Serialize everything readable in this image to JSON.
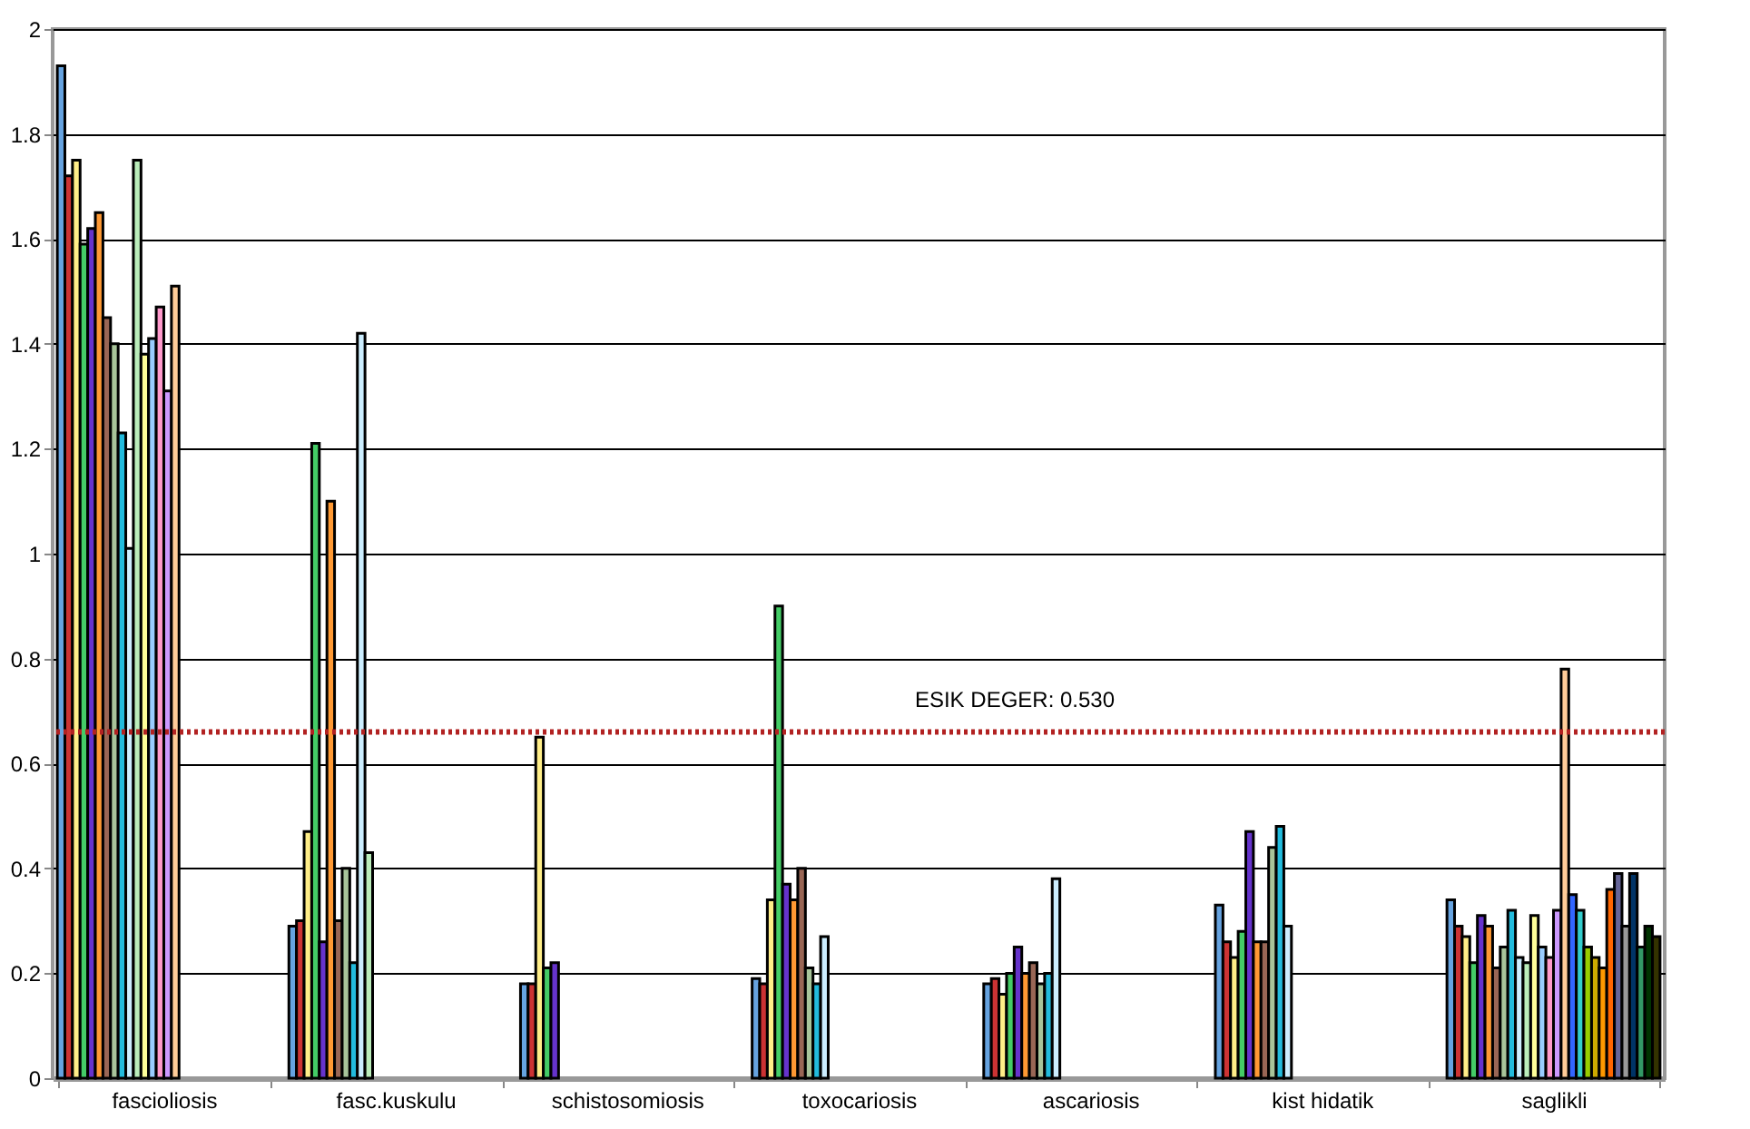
{
  "chart_data": {
    "type": "bar",
    "categories": [
      "fascioliosis",
      "fasc.kuskulu",
      "schistosomiosis",
      "toxocariosis",
      "ascariosis",
      "kist hidatik",
      "saglikli"
    ],
    "series": [
      {
        "color": "#66a3e0",
        "values": [
          1.93,
          0.29,
          0.18,
          0.19,
          0.18,
          0.33,
          0.34
        ]
      },
      {
        "color": "#cc3333",
        "values": [
          1.72,
          0.3,
          0.18,
          0.18,
          0.19,
          0.26,
          0.29
        ]
      },
      {
        "color": "#ffee88",
        "values": [
          1.75,
          0.47,
          0.65,
          0.34,
          0.16,
          0.23,
          0.27
        ]
      },
      {
        "color": "#44cc66",
        "values": [
          1.59,
          1.21,
          0.21,
          0.9,
          0.2,
          0.28,
          0.22
        ]
      },
      {
        "color": "#6633cc",
        "values": [
          1.62,
          0.26,
          0.22,
          0.37,
          0.25,
          0.47,
          0.31
        ]
      },
      {
        "color": "#ff9933",
        "values": [
          1.65,
          1.1,
          null,
          0.34,
          0.2,
          0.26,
          0.29
        ]
      },
      {
        "color": "#996655",
        "values": [
          1.45,
          0.3,
          null,
          0.4,
          0.22,
          0.26,
          0.21
        ]
      },
      {
        "color": "#a8c49a",
        "values": [
          1.4,
          0.4,
          null,
          0.21,
          0.18,
          0.44,
          0.25
        ]
      },
      {
        "color": "#22bbdd",
        "values": [
          1.23,
          0.22,
          null,
          0.18,
          0.2,
          0.48,
          0.32
        ]
      },
      {
        "color": "#cceeff",
        "values": [
          1.01,
          1.42,
          null,
          0.27,
          0.38,
          0.29,
          0.23
        ]
      },
      {
        "color": "#bbeebb",
        "values": [
          1.75,
          0.43,
          null,
          null,
          null,
          null,
          0.22
        ]
      },
      {
        "color": "#ffff99",
        "values": [
          1.38,
          null,
          null,
          null,
          null,
          null,
          0.31
        ]
      },
      {
        "color": "#99ccff",
        "values": [
          1.41,
          null,
          null,
          null,
          null,
          null,
          0.25
        ]
      },
      {
        "color": "#ff99cc",
        "values": [
          1.47,
          null,
          null,
          null,
          null,
          null,
          0.23
        ]
      },
      {
        "color": "#cc99ff",
        "values": [
          1.31,
          null,
          null,
          null,
          null,
          null,
          0.32
        ]
      },
      {
        "color": "#ffcc99",
        "values": [
          1.51,
          null,
          null,
          null,
          null,
          null,
          0.78
        ]
      },
      {
        "color": "#3366ff",
        "values": [
          null,
          null,
          null,
          null,
          null,
          null,
          0.35
        ]
      },
      {
        "color": "#33cccc",
        "values": [
          null,
          null,
          null,
          null,
          null,
          null,
          0.32
        ]
      },
      {
        "color": "#99cc00",
        "values": [
          null,
          null,
          null,
          null,
          null,
          null,
          0.25
        ]
      },
      {
        "color": "#ccaa00",
        "values": [
          null,
          null,
          null,
          null,
          null,
          null,
          0.23
        ]
      },
      {
        "color": "#ff9900",
        "values": [
          null,
          null,
          null,
          null,
          null,
          null,
          0.21
        ]
      },
      {
        "color": "#ff6600",
        "values": [
          null,
          null,
          null,
          null,
          null,
          null,
          0.36
        ]
      },
      {
        "color": "#666699",
        "values": [
          null,
          null,
          null,
          null,
          null,
          null,
          0.39
        ]
      },
      {
        "color": "#999999",
        "values": [
          null,
          null,
          null,
          null,
          null,
          null,
          0.29
        ]
      },
      {
        "color": "#003366",
        "values": [
          null,
          null,
          null,
          null,
          null,
          null,
          0.39
        ]
      },
      {
        "color": "#339966",
        "values": [
          null,
          null,
          null,
          null,
          null,
          null,
          0.25
        ]
      },
      {
        "color": "#003300",
        "values": [
          null,
          null,
          null,
          null,
          null,
          null,
          0.29
        ]
      },
      {
        "color": "#333300",
        "values": [
          null,
          null,
          null,
          null,
          null,
          null,
          0.27
        ]
      }
    ],
    "ylim": [
      0,
      2
    ],
    "yticks": [
      0,
      0.2,
      0.4,
      0.6,
      0.8,
      1,
      1.2,
      1.4,
      1.6,
      1.8,
      2
    ],
    "grid": "y",
    "ref_lines": [
      {
        "axis": "y",
        "value": 0.66,
        "color": "#b22222",
        "line_style": "dotted"
      }
    ],
    "annotations": [
      "ESIK DEGER: 0.530"
    ]
  }
}
